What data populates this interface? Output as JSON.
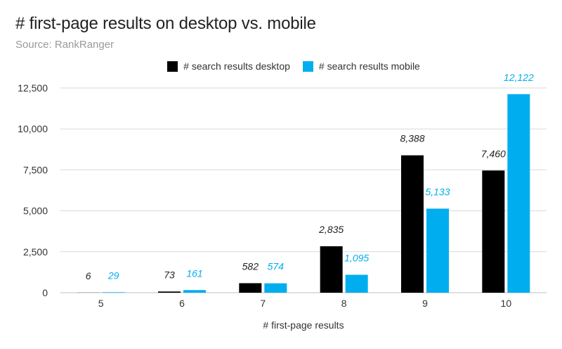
{
  "header": {
    "title": "# first-page results on desktop vs. mobile",
    "subtitle": "Source: RankRanger"
  },
  "colors": {
    "desktop": "#000000",
    "mobile": "#00aeef",
    "grid": "#d9d9d9",
    "axis_text": "#333333"
  },
  "chart_data": {
    "type": "bar",
    "categories": [
      "5",
      "6",
      "7",
      "8",
      "9",
      "10"
    ],
    "series": [
      {
        "name": "# search results desktop",
        "values": [
          6,
          73,
          582,
          2835,
          8388,
          7460
        ],
        "labels": [
          "6",
          "73",
          "582",
          "2,835",
          "8,388",
          "7,460"
        ]
      },
      {
        "name": "# search results mobile",
        "values": [
          29,
          161,
          574,
          1095,
          5133,
          12122
        ],
        "labels": [
          "29",
          "161",
          "574",
          "1,095",
          "5,133",
          "12,122"
        ]
      }
    ],
    "xlabel": "# first-page results",
    "ylabel": "",
    "ylim": [
      0,
      12500
    ],
    "yticks": [
      0,
      2500,
      5000,
      7500,
      10000,
      12500
    ],
    "ytick_labels": [
      "0",
      "2,500",
      "5,000",
      "7,500",
      "10,000",
      "12,500"
    ],
    "grid": true,
    "legend": "top-center"
  }
}
